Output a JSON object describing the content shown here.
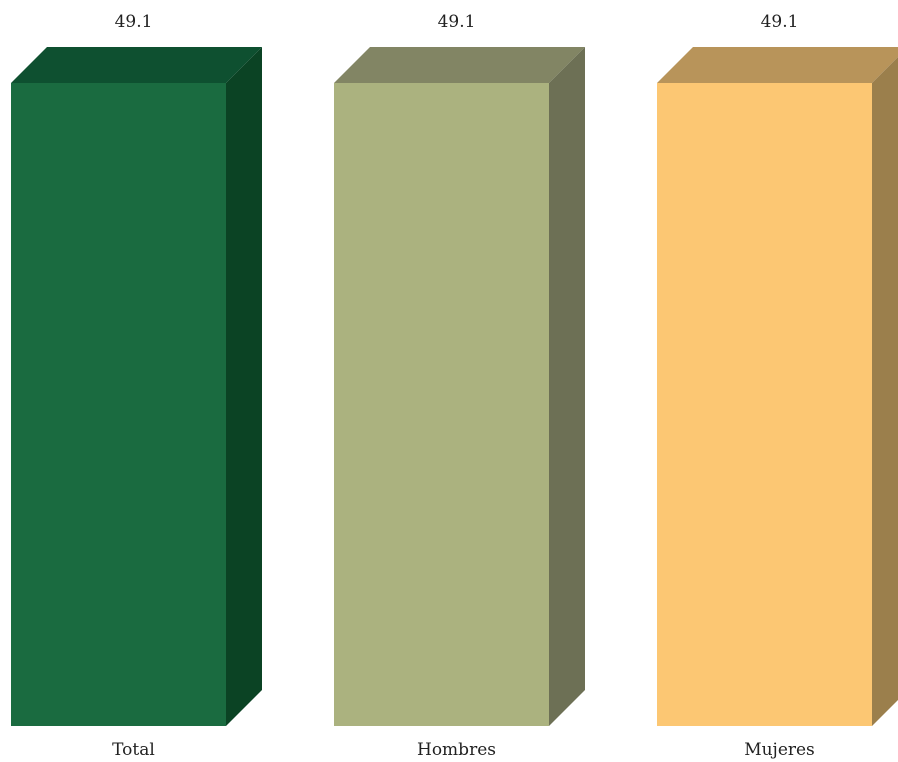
{
  "chart_data": {
    "type": "bar",
    "style": "3d",
    "categories": [
      "Total",
      "Hombres",
      "Mujeres"
    ],
    "values": [
      49.1,
      49.1,
      49.1
    ],
    "value_labels": [
      "49.1",
      "49.1",
      "49.1"
    ],
    "ylim": [
      0,
      49.1
    ],
    "grid": false,
    "legend": "none",
    "colors": {
      "front": [
        "#1a6b40",
        "#abb27f",
        "#fcc773"
      ],
      "top": [
        "#0e5030",
        "#828564",
        "#b8945a"
      ],
      "side": [
        "#0b4324",
        "#6d7055",
        "#9b7f4c"
      ]
    }
  }
}
